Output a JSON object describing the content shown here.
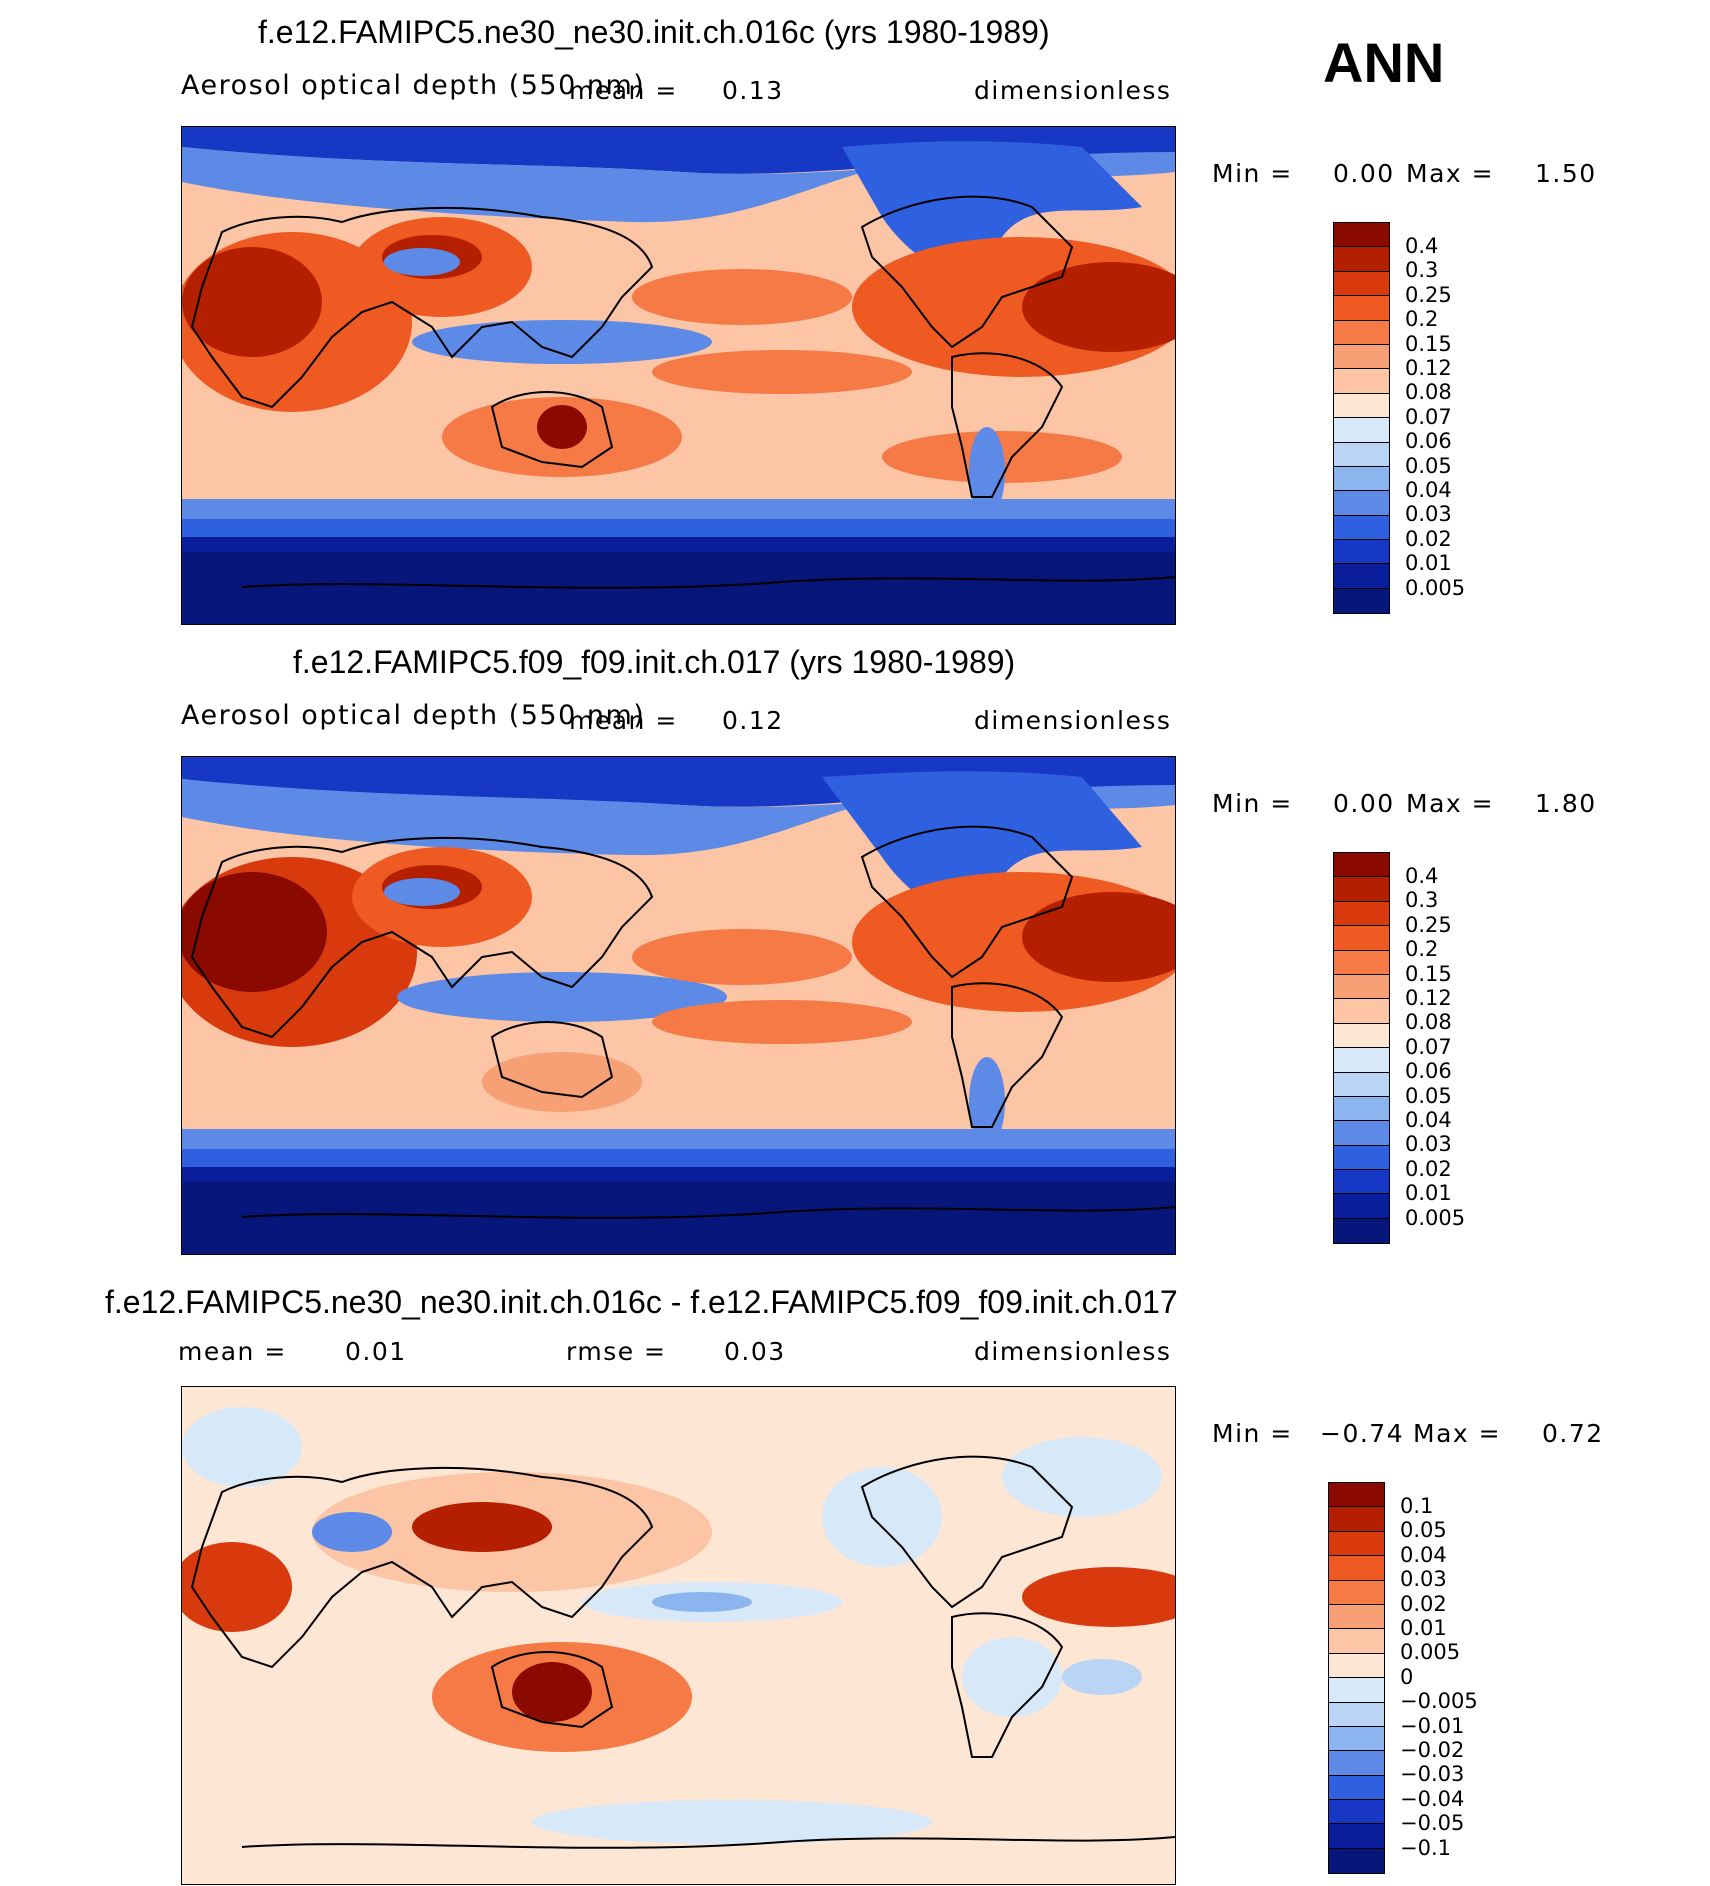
{
  "season": "ANN",
  "panels": [
    {
      "title": "f.e12.FAMIPC5.ne30_ne30.init.ch.016c (yrs 1980-1989)",
      "variable": "Aerosol optical depth (550 nm)",
      "mean_label": "mean =",
      "mean_value": "0.13",
      "units": "dimensionless",
      "min_label": "Min =",
      "min_value": "0.00",
      "max_label": "Max =",
      "max_value": "1.50",
      "levels": [
        "0.4",
        "0.3",
        "0.25",
        "0.2",
        "0.15",
        "0.12",
        "0.08",
        "0.07",
        "0.06",
        "0.05",
        "0.04",
        "0.03",
        "0.02",
        "0.01",
        "0.005"
      ],
      "colors": [
        "#8b0a00",
        "#b41f00",
        "#d93a0d",
        "#ee5a21",
        "#f57a45",
        "#f79f75",
        "#fbc5a6",
        "#fde6d4",
        "#d7e8f8",
        "#b9d4f5",
        "#8cb4ee",
        "#5c8ae6",
        "#2e60df",
        "#1737c5",
        "#0a1e9c",
        "#06167a"
      ]
    },
    {
      "title": "f.e12.FAMIPC5.f09_f09.init.ch.017 (yrs 1980-1989)",
      "variable": "Aerosol optical depth (550 nm)",
      "mean_label": "mean =",
      "mean_value": "0.12",
      "units": "dimensionless",
      "min_label": "Min =",
      "min_value": "0.00",
      "max_label": "Max =",
      "max_value": "1.80",
      "levels": [
        "0.4",
        "0.3",
        "0.25",
        "0.2",
        "0.15",
        "0.12",
        "0.08",
        "0.07",
        "0.06",
        "0.05",
        "0.04",
        "0.03",
        "0.02",
        "0.01",
        "0.005"
      ],
      "colors": [
        "#8b0a00",
        "#b41f00",
        "#d93a0d",
        "#ee5a21",
        "#f57a45",
        "#f79f75",
        "#fbc5a6",
        "#fde6d4",
        "#d7e8f8",
        "#b9d4f5",
        "#8cb4ee",
        "#5c8ae6",
        "#2e60df",
        "#1737c5",
        "#0a1e9c",
        "#06167a"
      ]
    },
    {
      "title": "f.e12.FAMIPC5.ne30_ne30.init.ch.016c - f.e12.FAMIPC5.f09_f09.init.ch.017",
      "mean_label": "mean =",
      "mean_value": "0.01",
      "rmse_label": "rmse =",
      "rmse_value": "0.03",
      "units": "dimensionless",
      "min_label": "Min =",
      "min_value": "−0.74",
      "max_label": "Max =",
      "max_value": "0.72",
      "levels": [
        "0.1",
        "0.05",
        "0.04",
        "0.03",
        "0.02",
        "0.01",
        "0.005",
        "0",
        "−0.005",
        "−0.01",
        "−0.02",
        "−0.03",
        "−0.04",
        "−0.05",
        "−0.1"
      ],
      "colors": [
        "#8b0a00",
        "#b41f00",
        "#d93a0d",
        "#ee5a21",
        "#f57a45",
        "#f79f75",
        "#fbc5a6",
        "#fde6d4",
        "#d7e8f8",
        "#b9d4f5",
        "#8cb4ee",
        "#5c8ae6",
        "#2e60df",
        "#1737c5",
        "#0a1e9c",
        "#06167a"
      ]
    }
  ],
  "chart_data": [
    {
      "type": "heatmap",
      "title": "f.e12.FAMIPC5.ne30_ne30.init.ch.016c (yrs 1980-1989)",
      "variable": "Aerosol optical depth (550 nm)",
      "units": "dimensionless",
      "mean": 0.13,
      "min": 0.0,
      "max": 1.5,
      "contour_levels": [
        0.005,
        0.01,
        0.02,
        0.03,
        0.04,
        0.05,
        0.06,
        0.07,
        0.08,
        0.12,
        0.15,
        0.2,
        0.25,
        0.3,
        0.4
      ]
    },
    {
      "type": "heatmap",
      "title": "f.e12.FAMIPC5.f09_f09.init.ch.017 (yrs 1980-1989)",
      "variable": "Aerosol optical depth (550 nm)",
      "units": "dimensionless",
      "mean": 0.12,
      "min": 0.0,
      "max": 1.8,
      "contour_levels": [
        0.005,
        0.01,
        0.02,
        0.03,
        0.04,
        0.05,
        0.06,
        0.07,
        0.08,
        0.12,
        0.15,
        0.2,
        0.25,
        0.3,
        0.4
      ]
    },
    {
      "type": "heatmap",
      "title": "f.e12.FAMIPC5.ne30_ne30.init.ch.016c - f.e12.FAMIPC5.f09_f09.init.ch.017",
      "units": "dimensionless",
      "mean": 0.01,
      "rmse": 0.03,
      "min": -0.74,
      "max": 0.72,
      "contour_levels": [
        -0.1,
        -0.05,
        -0.04,
        -0.03,
        -0.02,
        -0.01,
        -0.005,
        0,
        0.005,
        0.01,
        0.02,
        0.03,
        0.04,
        0.05,
        0.1
      ]
    }
  ]
}
